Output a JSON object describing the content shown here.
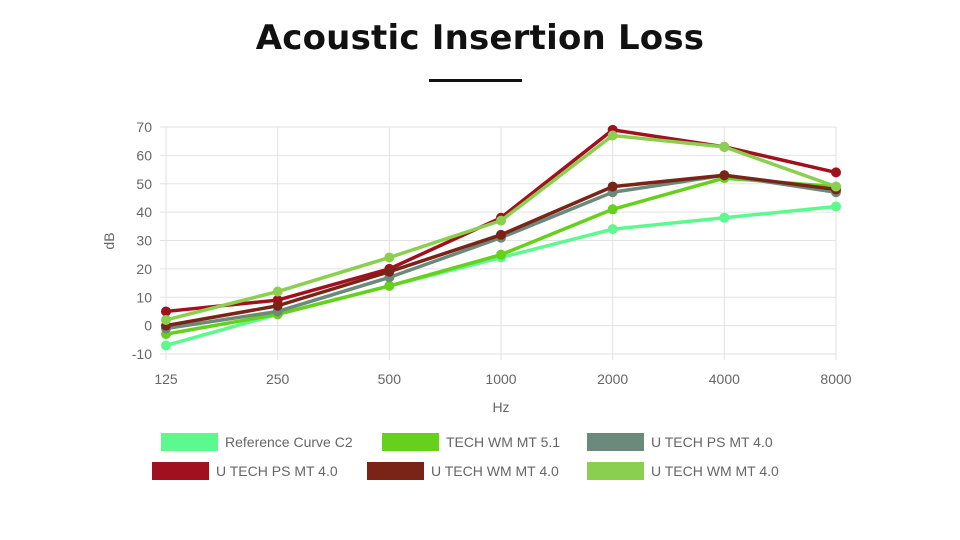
{
  "page": {
    "title": "Acoustic Insertion Loss"
  },
  "chart_data": {
    "type": "line",
    "title": "",
    "xlabel": "Hz",
    "ylabel": "dB",
    "categories": [
      "125",
      "250",
      "500",
      "1000",
      "2000",
      "4000",
      "8000"
    ],
    "ylim": [
      -10,
      70
    ],
    "yticks": [
      "-10",
      "0",
      "10",
      "20",
      "30",
      "40",
      "50",
      "60",
      "70"
    ],
    "grid": true,
    "legend_position": "bottom",
    "series": [
      {
        "name": "Reference Curve C2",
        "color": "#5cf98f",
        "values": [
          -7,
          4,
          14,
          24,
          34,
          38,
          42
        ]
      },
      {
        "name": "TECH WM MT 5.1",
        "color": "#66d01a",
        "values": [
          -3,
          4,
          14,
          25,
          41,
          52,
          49
        ]
      },
      {
        "name": "U TECH PS MT 4.0",
        "color": "#6a8a7c",
        "values": [
          -1,
          5,
          17,
          31,
          47,
          53,
          47
        ]
      },
      {
        "name": "U TECH PS MT 4.0",
        "color": "#a0101e",
        "values": [
          5,
          9,
          20,
          38,
          69,
          63,
          54
        ]
      },
      {
        "name": "U TECH WM MT 4.0",
        "color": "#7a2418",
        "values": [
          0,
          7,
          19,
          32,
          49,
          53,
          48
        ]
      },
      {
        "name": "U TECH WM MT 4.0",
        "color": "#8ad04e",
        "values": [
          2,
          12,
          24,
          37,
          67,
          63,
          49
        ]
      }
    ]
  }
}
